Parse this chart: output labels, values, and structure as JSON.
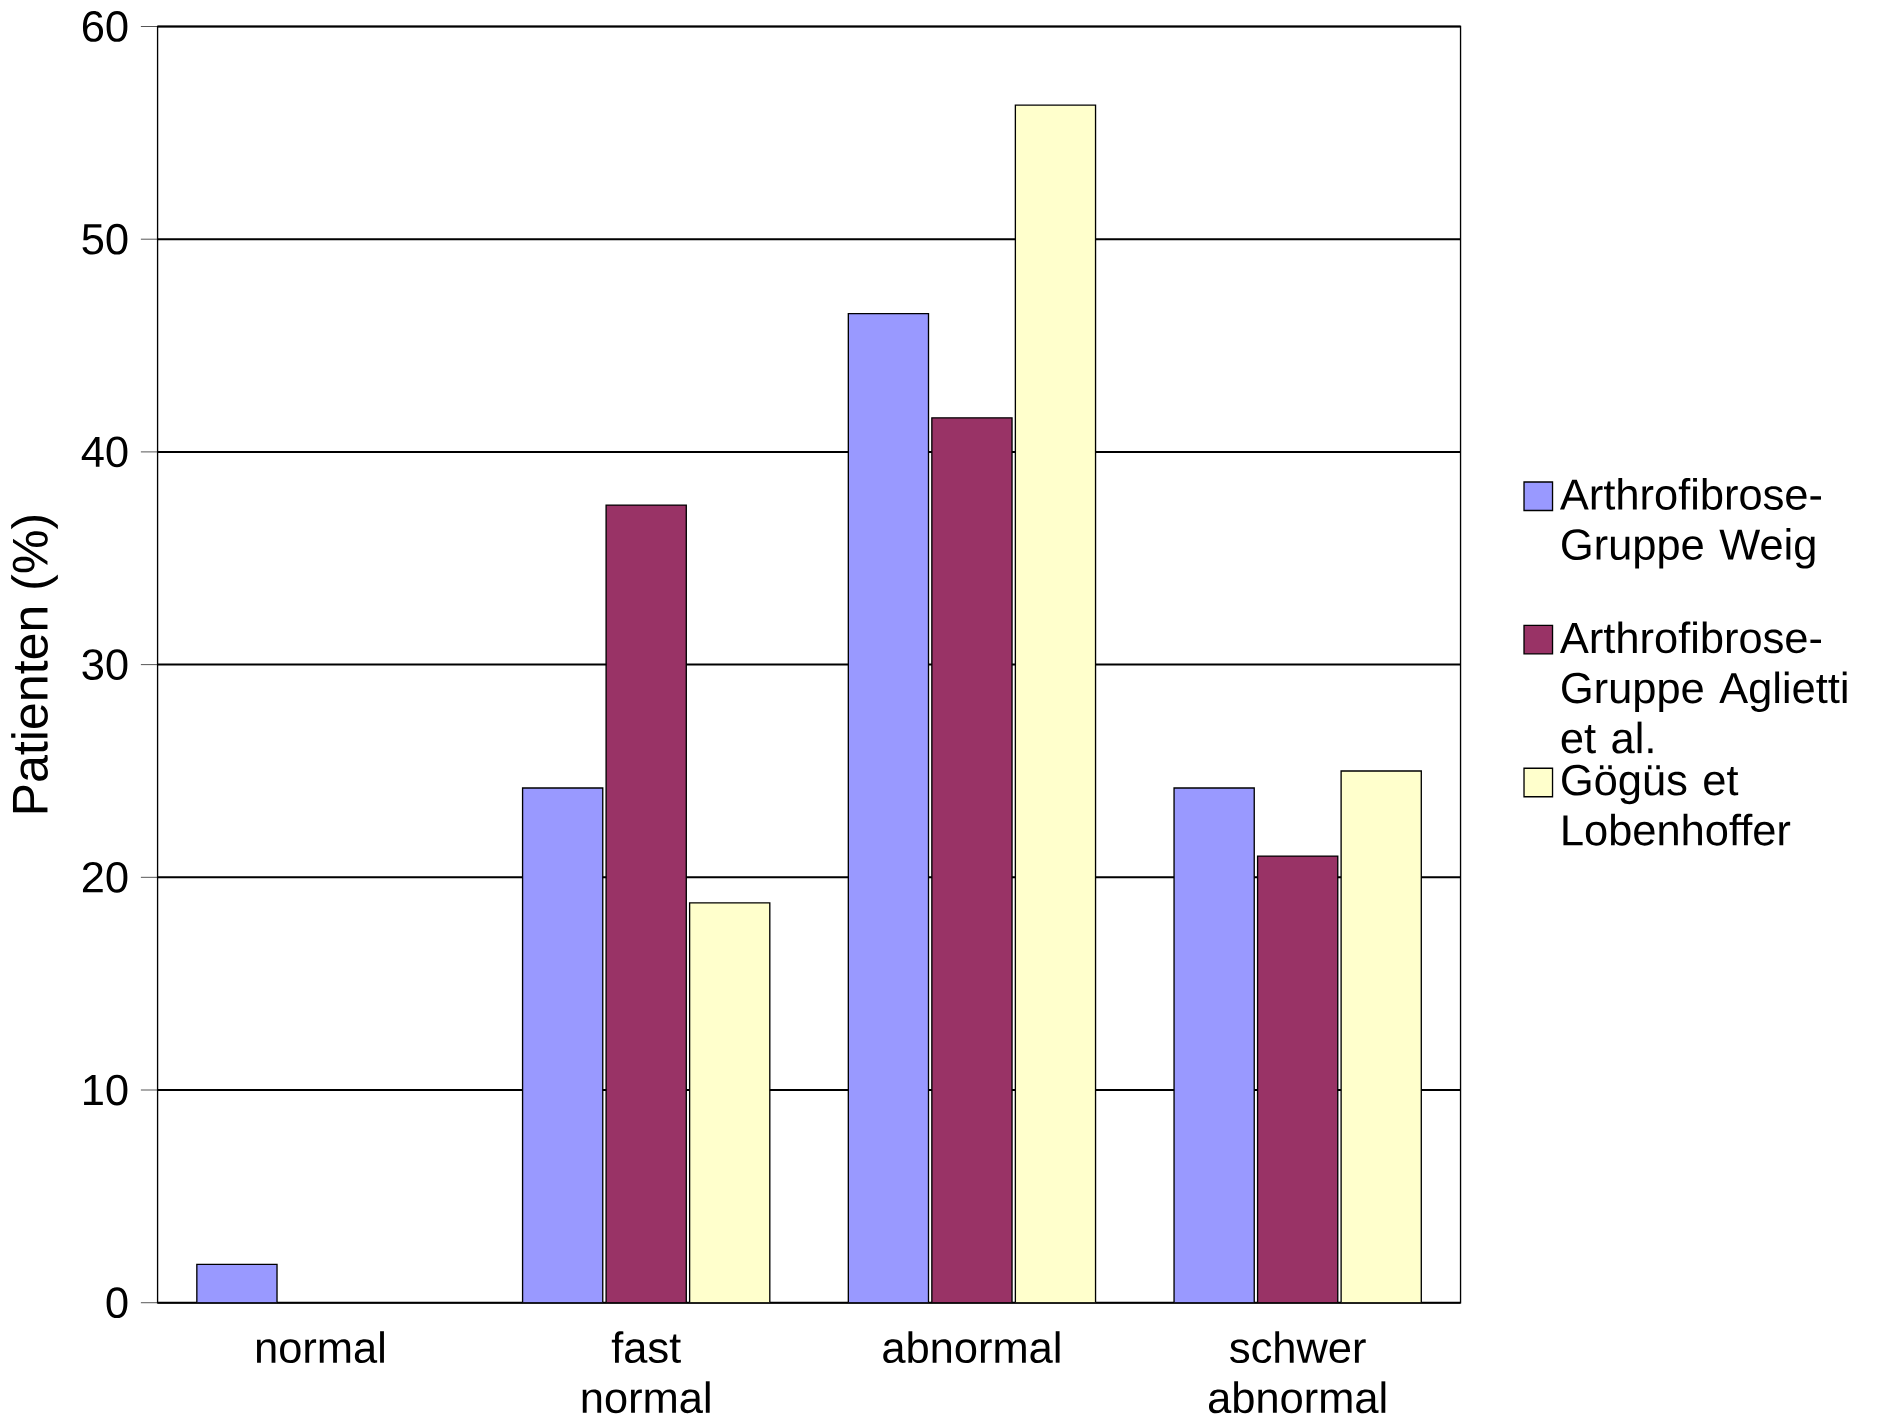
{
  "chart_data": {
    "type": "bar",
    "ylabel": "Patienten (%)",
    "categories": [
      "normal",
      "fast normal",
      "abnormal",
      "schwer abnormal"
    ],
    "series": [
      {
        "name": "Arthrofibrose-Gruppe Weig",
        "color": "#9999ff",
        "values": [
          1.8,
          24.2,
          46.5,
          24.2
        ]
      },
      {
        "name": "Arthrofibrose-Gruppe Aglietti et al.",
        "color": "#993366",
        "values": [
          0,
          37.5,
          41.6,
          21
        ]
      },
      {
        "name": "Gögüs et Lobenhoffer",
        "color": "#ffffcc",
        "values": [
          0,
          18.8,
          56.3,
          25
        ]
      }
    ],
    "ylim": [
      0,
      60
    ],
    "yticks": [
      0,
      10,
      20,
      30,
      40,
      50,
      60
    ],
    "grid": "y",
    "legend": "right"
  }
}
